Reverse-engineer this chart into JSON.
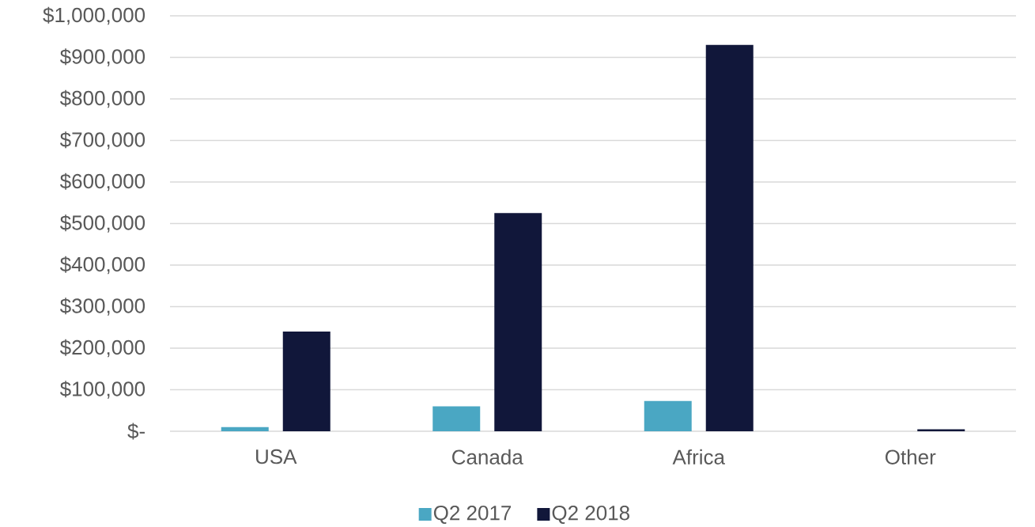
{
  "chart_data": {
    "type": "bar",
    "categories": [
      "USA",
      "Canada",
      "Africa",
      "Other"
    ],
    "series": [
      {
        "name": "Q2 2017",
        "color": "#4aa7c3",
        "values": [
          10000,
          60000,
          73000,
          0
        ]
      },
      {
        "name": "Q2 2018",
        "color": "#11173a",
        "values": [
          240000,
          525000,
          930000,
          5000
        ]
      }
    ],
    "ylim": [
      0,
      1000000
    ],
    "yticks": [
      {
        "value": 0,
        "label": "$-"
      },
      {
        "value": 100000,
        "label": "$100,000"
      },
      {
        "value": 200000,
        "label": "$200,000"
      },
      {
        "value": 300000,
        "label": "$300,000"
      },
      {
        "value": 400000,
        "label": "$400,000"
      },
      {
        "value": 500000,
        "label": "$500,000"
      },
      {
        "value": 600000,
        "label": "$600,000"
      },
      {
        "value": 700000,
        "label": "$700,000"
      },
      {
        "value": 800000,
        "label": "$800,000"
      },
      {
        "value": 900000,
        "label": "$900,000"
      },
      {
        "value": 1000000,
        "label": "$1,000,000"
      }
    ],
    "grid": "y",
    "legend": "bottom"
  }
}
